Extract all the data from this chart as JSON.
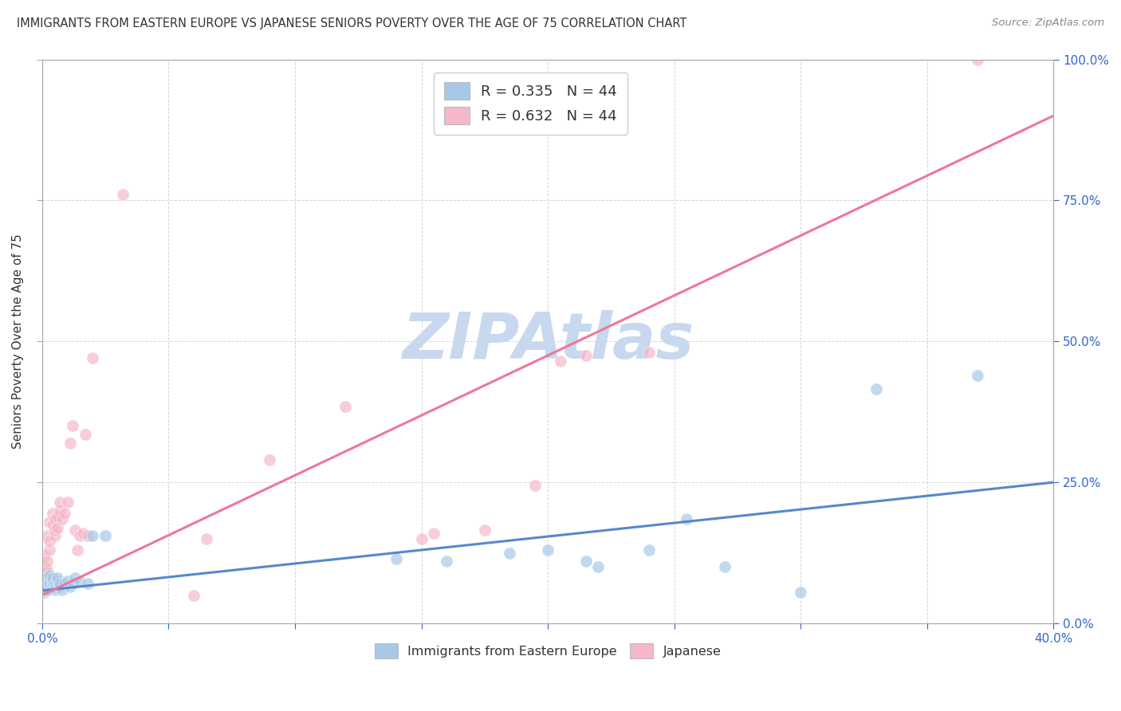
{
  "title": "IMMIGRANTS FROM EASTERN EUROPE VS JAPANESE SENIORS POVERTY OVER THE AGE OF 75 CORRELATION CHART",
  "source": "Source: ZipAtlas.com",
  "ylabel": "Seniors Poverty Over the Age of 75",
  "xlim": [
    0.0,
    0.4
  ],
  "ylim": [
    0.0,
    1.0
  ],
  "xtick_positions": [
    0.0,
    0.05,
    0.1,
    0.15,
    0.2,
    0.25,
    0.3,
    0.35,
    0.4
  ],
  "xtick_labels": [
    "0.0%",
    "",
    "",
    "",
    "",
    "",
    "",
    "",
    "40.0%"
  ],
  "ytick_positions": [
    0.0,
    0.25,
    0.5,
    0.75,
    1.0
  ],
  "ytick_labels_right": [
    "0.0%",
    "25.0%",
    "50.0%",
    "75.0%",
    "100.0%"
  ],
  "watermark": "ZIPAtlas",
  "blue_color": "#a8c8e8",
  "pink_color": "#f5b8c8",
  "blue_line_color": "#5588cc",
  "pink_line_color": "#ee7799",
  "title_color": "#333333",
  "axis_label_color": "#3366cc",
  "grid_color": "#cccccc",
  "watermark_color": "#c8d8ee",
  "background_color": "#ffffff",
  "fig_width": 14.06,
  "fig_height": 8.92,
  "blue_scatter_x": [
    0.0,
    0.001,
    0.001,
    0.001,
    0.001,
    0.002,
    0.002,
    0.002,
    0.002,
    0.003,
    0.003,
    0.003,
    0.004,
    0.004,
    0.004,
    0.005,
    0.005,
    0.005,
    0.006,
    0.006,
    0.007,
    0.007,
    0.008,
    0.009,
    0.01,
    0.011,
    0.012,
    0.013,
    0.015,
    0.018,
    0.02,
    0.025,
    0.14,
    0.16,
    0.185,
    0.2,
    0.215,
    0.22,
    0.24,
    0.255,
    0.27,
    0.3,
    0.33,
    0.37
  ],
  "blue_scatter_y": [
    0.065,
    0.055,
    0.075,
    0.08,
    0.06,
    0.06,
    0.075,
    0.08,
    0.06,
    0.075,
    0.07,
    0.085,
    0.065,
    0.075,
    0.08,
    0.065,
    0.07,
    0.06,
    0.075,
    0.08,
    0.065,
    0.07,
    0.06,
    0.07,
    0.075,
    0.065,
    0.07,
    0.08,
    0.075,
    0.07,
    0.155,
    0.155,
    0.115,
    0.11,
    0.125,
    0.13,
    0.11,
    0.1,
    0.13,
    0.185,
    0.1,
    0.055,
    0.415,
    0.44
  ],
  "pink_scatter_x": [
    0.0,
    0.001,
    0.001,
    0.001,
    0.002,
    0.002,
    0.002,
    0.003,
    0.003,
    0.003,
    0.004,
    0.004,
    0.005,
    0.005,
    0.005,
    0.006,
    0.006,
    0.007,
    0.007,
    0.008,
    0.009,
    0.01,
    0.011,
    0.012,
    0.013,
    0.014,
    0.015,
    0.016,
    0.017,
    0.018,
    0.02,
    0.032,
    0.06,
    0.065,
    0.09,
    0.12,
    0.15,
    0.155,
    0.175,
    0.195,
    0.205,
    0.215,
    0.24,
    0.37
  ],
  "pink_scatter_y": [
    0.065,
    0.09,
    0.1,
    0.12,
    0.095,
    0.11,
    0.155,
    0.13,
    0.145,
    0.18,
    0.175,
    0.195,
    0.155,
    0.185,
    0.165,
    0.17,
    0.19,
    0.2,
    0.215,
    0.185,
    0.195,
    0.215,
    0.32,
    0.35,
    0.165,
    0.13,
    0.155,
    0.16,
    0.335,
    0.155,
    0.47,
    0.76,
    0.05,
    0.15,
    0.29,
    0.385,
    0.15,
    0.16,
    0.165,
    0.245,
    0.465,
    0.475,
    0.48,
    1.0
  ],
  "blue_trend_x": [
    0.0,
    0.4
  ],
  "blue_trend_y": [
    0.058,
    0.25
  ],
  "pink_trend_x": [
    0.0,
    0.4
  ],
  "pink_trend_y": [
    0.05,
    0.9
  ]
}
